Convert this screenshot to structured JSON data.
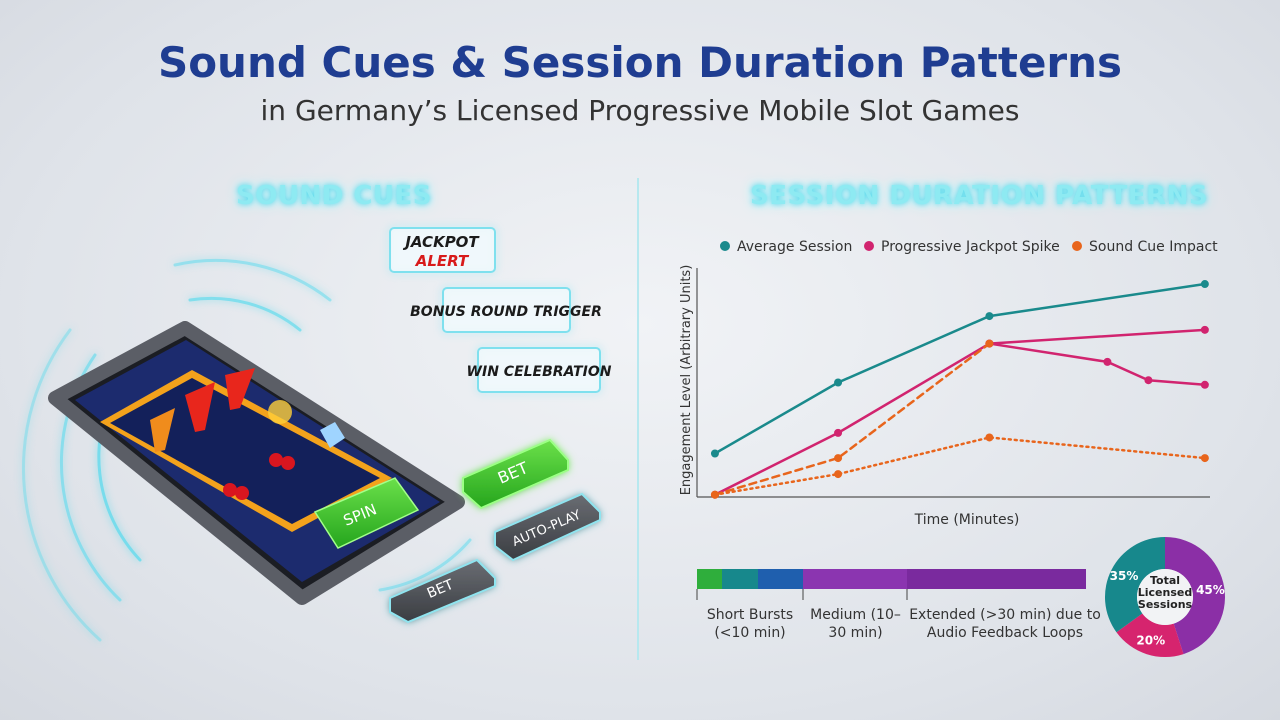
{
  "header": {
    "title": "Sound Cues & Session Duration Patterns",
    "subtitle": "in Germany’s Licensed Progressive Mobile Slot Games"
  },
  "sound_cues": {
    "heading": "SOUND CUES",
    "callouts": [
      "JACKPOT",
      "ALERT",
      "BONUS ROUND TRIGGER",
      "WIN CELEBRATION"
    ],
    "screen_button": "SPIN",
    "buttons": [
      "BET",
      "AUTO-PLAY",
      "BET"
    ]
  },
  "duration": {
    "heading": "SESSION DURATION PATTERNS",
    "segments": [
      "Short Bursts (<10 min)",
      "Medium (10–30 min)",
      "Extended (>30 min) due to Audio Feedback Loops"
    ]
  },
  "chart_data": [
    {
      "type": "line",
      "y_label": "Engagement Level (Arbitrary Units)",
      "x_label": "Time (Minutes)",
      "xlim": [
        0,
        100
      ],
      "ylim": [
        0,
        100
      ],
      "series": [
        {
          "name": "Average Session",
          "color": "#1a8a8c",
          "style": "solid",
          "markers": true,
          "x": [
            3.5,
            27.5,
            57,
            99
          ],
          "values": [
            19,
            50,
            79,
            93
          ]
        },
        {
          "name": "Progressive Jackpot Spike",
          "color": "#d1246f",
          "style": "solid",
          "markers": true,
          "x": [
            3.5,
            27.5,
            57,
            99
          ],
          "values": [
            1,
            28,
            67,
            73
          ]
        },
        {
          "color": "#d1246f",
          "style": "solid",
          "markers": true,
          "x": [
            57,
            80,
            88,
            99
          ],
          "values": [
            67,
            59,
            51,
            49
          ]
        },
        {
          "name": "Sound Cue Impact",
          "color": "#e8651c",
          "style": "dashed",
          "markers": true,
          "x": [
            3.5,
            27.5,
            57
          ],
          "values": [
            1,
            17,
            67
          ]
        },
        {
          "color": "#e8651c",
          "style": "dotted",
          "markers": true,
          "x": [
            3.5,
            27.5,
            57,
            99
          ],
          "values": [
            1,
            10,
            26,
            17
          ]
        }
      ]
    },
    {
      "type": "pie",
      "center_label": "Total Licensed Sessions",
      "categories": [
        null,
        null,
        null
      ],
      "values": [
        45,
        20,
        35
      ],
      "value_labels": [
        "45%",
        "20%",
        "35%"
      ],
      "colors": [
        "#8b2fa6",
        "#d6246e",
        "#17888c"
      ]
    }
  ]
}
